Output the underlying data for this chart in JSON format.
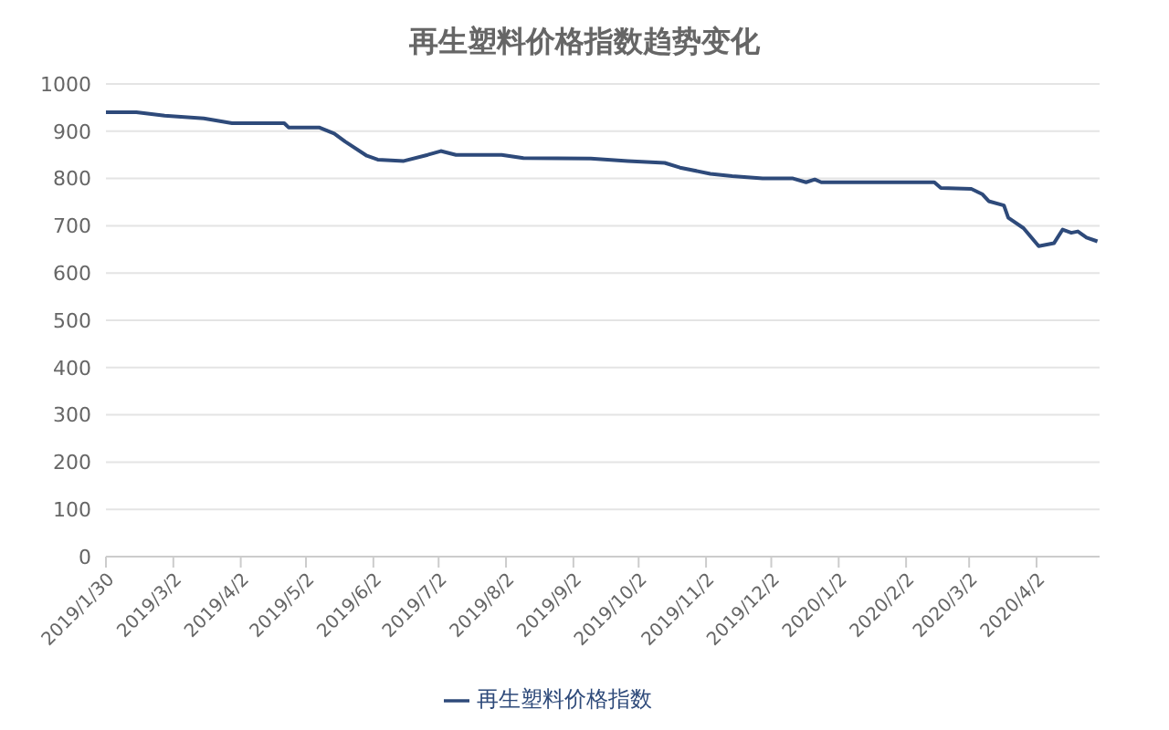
{
  "chart_data": {
    "type": "line",
    "title": "再生塑料价格指数趋势变化",
    "x": [
      "2019-01-30",
      "2019-02-13",
      "2019-02-26",
      "2019-03-16",
      "2019-03-29",
      "2019-04-22",
      "2019-04-24",
      "2019-05-08",
      "2019-05-15",
      "2019-05-20",
      "2019-05-30",
      "2019-06-04",
      "2019-06-16",
      "2019-06-27",
      "2019-07-03",
      "2019-07-10",
      "2019-07-31",
      "2019-08-10",
      "2019-09-10",
      "2019-09-27",
      "2019-10-14",
      "2019-10-21",
      "2019-11-04",
      "2019-11-14",
      "2019-11-28",
      "2019-12-12",
      "2019-12-18",
      "2019-12-22",
      "2019-12-25",
      "2020-02-15",
      "2020-02-18",
      "2020-03-03",
      "2020-03-08",
      "2020-03-11",
      "2020-03-18",
      "2020-03-20",
      "2020-03-27",
      "2020-04-03",
      "2020-04-10",
      "2020-04-14",
      "2020-04-18",
      "2020-04-21",
      "2020-04-25",
      "2020-04-30"
    ],
    "series": [
      {
        "name": "再生塑料价格指数",
        "color": "#2e4a7a",
        "values": [
          940,
          940,
          933,
          927,
          917,
          917,
          908,
          908,
          895,
          878,
          848,
          840,
          837,
          850,
          858,
          850,
          850,
          843,
          842,
          837,
          833,
          823,
          810,
          805,
          800,
          800,
          792,
          798,
          792,
          792,
          780,
          778,
          767,
          752,
          743,
          717,
          695,
          657,
          663,
          692,
          685,
          688,
          675,
          667
        ]
      }
    ],
    "xlim": [
      "2019-01-30",
      "2020-05-01"
    ],
    "xticks": [
      {
        "value": "2019-01-30",
        "label": "2019/1/30"
      },
      {
        "value": "2019-03-02",
        "label": "2019/3/2"
      },
      {
        "value": "2019-04-02",
        "label": "2019/4/2"
      },
      {
        "value": "2019-05-02",
        "label": "2019/5/2"
      },
      {
        "value": "2019-06-02",
        "label": "2019/6/2"
      },
      {
        "value": "2019-07-02",
        "label": "2019/7/2"
      },
      {
        "value": "2019-08-02",
        "label": "2019/8/2"
      },
      {
        "value": "2019-09-02",
        "label": "2019/9/2"
      },
      {
        "value": "2019-10-02",
        "label": "2019/10/2"
      },
      {
        "value": "2019-11-02",
        "label": "2019/11/2"
      },
      {
        "value": "2019-12-02",
        "label": "2019/12/2"
      },
      {
        "value": "2020-01-02",
        "label": "2020/1/2"
      },
      {
        "value": "2020-02-02",
        "label": "2020/2/2"
      },
      {
        "value": "2020-03-02",
        "label": "2020/3/2"
      },
      {
        "value": "2020-04-02",
        "label": "2020/4/2"
      }
    ],
    "ylim": [
      0,
      1000
    ],
    "yticks": [
      0,
      100,
      200,
      300,
      400,
      500,
      600,
      700,
      800,
      900,
      1000
    ],
    "grid": "y",
    "legend": "bottom",
    "marker": "none",
    "line_style": "solid"
  }
}
